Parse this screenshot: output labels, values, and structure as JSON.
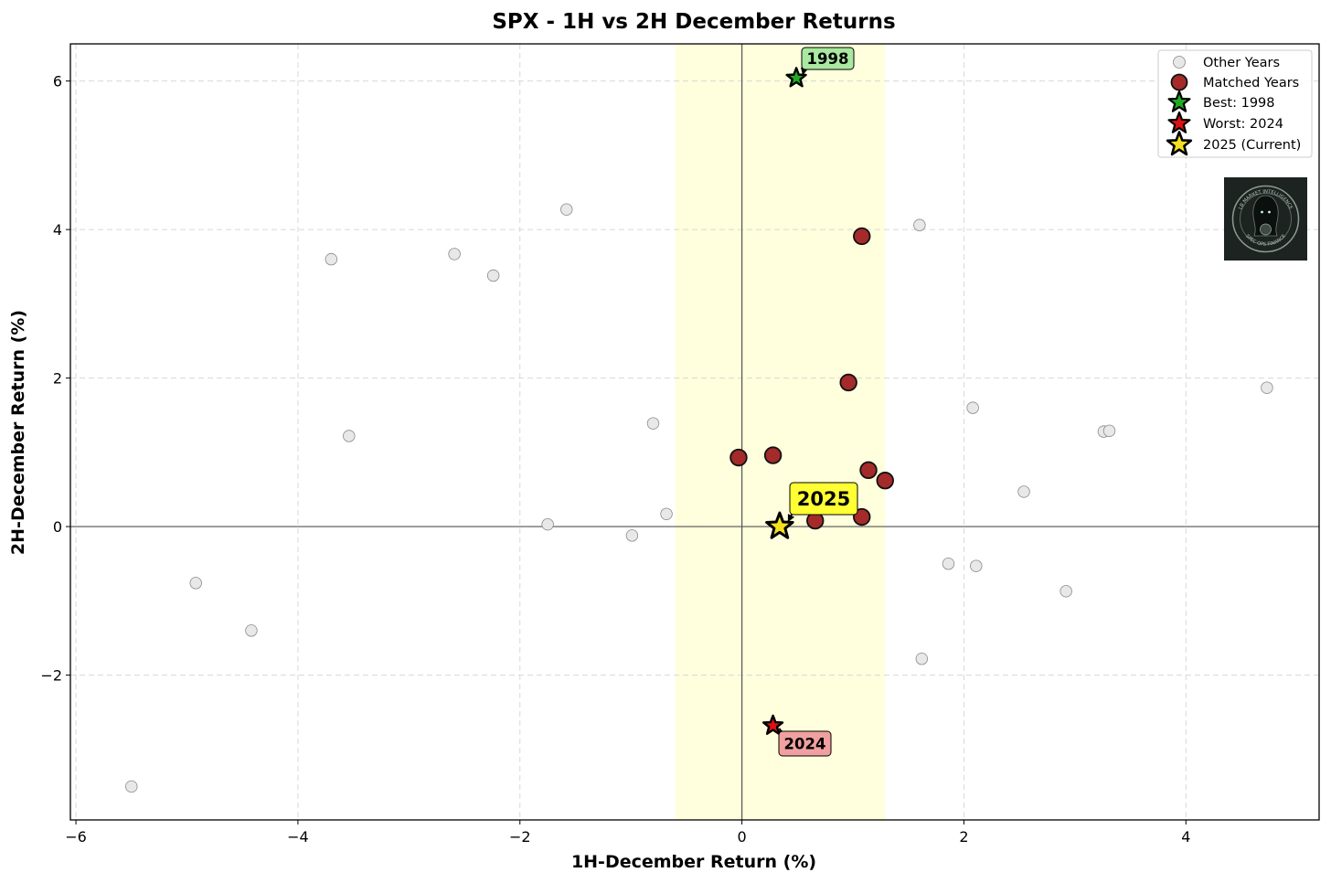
{
  "chart_data": {
    "type": "scatter",
    "title": "SPX - 1H vs 2H December Returns",
    "xlabel": "1H-December Return (%)",
    "ylabel": "2H-December Return (%)",
    "xlim": [
      -6.05,
      5.2
    ],
    "ylim": [
      -3.95,
      6.5
    ],
    "xticks": [
      -6,
      -4,
      -2,
      0,
      2,
      4
    ],
    "yticks": [
      -2,
      0,
      2,
      4,
      6
    ],
    "tick_labels_x": [
      "−6",
      "−4",
      "−2",
      "0",
      "2",
      "4"
    ],
    "tick_labels_y": [
      "−2",
      "0",
      "2",
      "4",
      "6"
    ],
    "grid": true,
    "highlight_band_x": [
      -0.6,
      1.29
    ],
    "reference_lines": {
      "x": 0,
      "y": 0
    },
    "colors": {
      "other": "#e8e8e8",
      "matched": "#a52a2a",
      "best": "#22aa22",
      "worst": "#dd1111",
      "current": "#f5e020",
      "band": "#ffffdd",
      "best_box": "#a8e8a0",
      "worst_box": "#f0a0a0",
      "current_box": "#ffff33"
    },
    "series": [
      {
        "name": "Other Years",
        "points": [
          [
            -5.5,
            -3.5
          ],
          [
            -4.92,
            -0.76
          ],
          [
            -4.42,
            -1.4
          ],
          [
            -3.7,
            3.6
          ],
          [
            -3.54,
            1.22
          ],
          [
            -2.59,
            3.67
          ],
          [
            -2.24,
            3.38
          ],
          [
            -1.75,
            0.03
          ],
          [
            -1.58,
            4.27
          ],
          [
            -0.99,
            -0.12
          ],
          [
            -0.8,
            1.39
          ],
          [
            -0.68,
            0.17
          ],
          [
            1.6,
            4.06
          ],
          [
            1.62,
            -1.78
          ],
          [
            1.86,
            -0.5
          ],
          [
            2.08,
            1.6
          ],
          [
            2.11,
            -0.53
          ],
          [
            2.54,
            0.47
          ],
          [
            2.92,
            -0.87
          ],
          [
            3.26,
            1.28
          ],
          [
            3.31,
            1.29
          ],
          [
            4.73,
            1.87
          ]
        ]
      },
      {
        "name": "Matched Years",
        "points": [
          [
            1.08,
            3.91
          ],
          [
            0.96,
            1.94
          ],
          [
            -0.03,
            0.93
          ],
          [
            0.28,
            0.96
          ],
          [
            1.14,
            0.76
          ],
          [
            1.29,
            0.62
          ],
          [
            0.66,
            0.08
          ],
          [
            1.08,
            0.13
          ]
        ]
      },
      {
        "name": "Best: 1998",
        "points": [
          [
            0.49,
            6.04
          ]
        ]
      },
      {
        "name": "Worst: 2024",
        "points": [
          [
            0.28,
            -2.68
          ]
        ]
      },
      {
        "name": "2025 (Current)",
        "points": [
          [
            0.34,
            0.0
          ]
        ]
      }
    ],
    "annotations": [
      {
        "text": "1998",
        "target": [
          0.49,
          6.04
        ]
      },
      {
        "text": "2024",
        "target": [
          0.28,
          -2.68
        ]
      },
      {
        "text": "2025",
        "target": [
          0.34,
          0.0
        ]
      }
    ],
    "legend": {
      "position": "top-right",
      "entries": [
        "Other Years",
        "Matched Years",
        "Best: 1998",
        "Worst: 2024",
        "2025 (Current)"
      ]
    },
    "logo": {
      "top_text": "LB MARKET INTELLIGENCE",
      "bottom_text": "SPEC OPS FINANCE"
    }
  }
}
